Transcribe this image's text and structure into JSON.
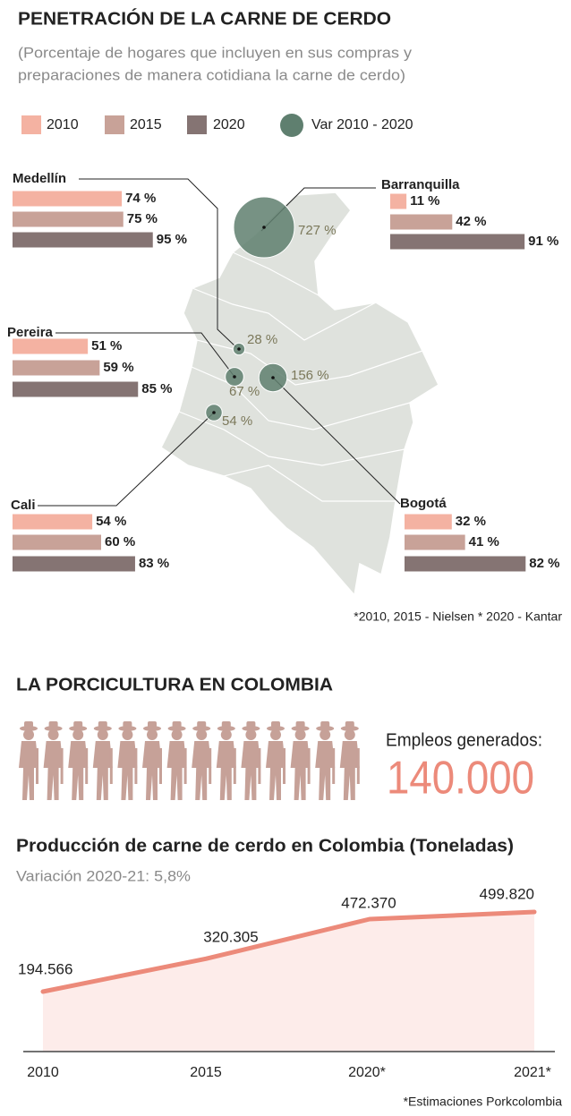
{
  "chart_data": [
    {
      "type": "bar",
      "title": "PENETRACIÓN DE LA CARNE DE CERDO",
      "subtitle": [
        "(Porcentaje de hogares que incluyen en sus compras y",
        "preparaciones de manera cotidiana la carne de cerdo)"
      ],
      "categories": [
        "Medellín",
        "Barranquilla",
        "Pereira",
        "Bogotá",
        "Cali"
      ],
      "series": [
        {
          "name": "2010",
          "color": "#f4b2a2",
          "values": [
            74,
            11,
            51,
            32,
            54
          ],
          "value_labels": [
            "74 %",
            "11 %",
            "51 %",
            "32 %",
            "54 %"
          ]
        },
        {
          "name": "2015",
          "color": "#c8a298",
          "values": [
            75,
            42,
            59,
            41,
            60
          ],
          "value_labels": [
            "75 %",
            "42 %",
            "59 %",
            "41 %",
            "60 %"
          ]
        },
        {
          "name": "2020",
          "color": "#857473",
          "values": [
            95,
            91,
            85,
            82,
            83
          ],
          "value_labels": [
            "95 %",
            "91 %",
            "85 %",
            "82 %",
            "83 %"
          ]
        },
        {
          "name": "Var 2010 - 2020",
          "type": "bubble",
          "color": "#5f7f6f",
          "values": [
            28,
            727,
            67,
            156,
            54
          ],
          "value_labels": [
            "28 %",
            "727 %",
            "67 %",
            "156 %",
            "54 %"
          ]
        }
      ],
      "note": "*2010, 2015 - Nielsen * 2020 - Kantar"
    },
    {
      "type": "line",
      "title": "Producción de carne de cerdo en Colombia (Toneladas)",
      "subtitle": "Variación 2020-21: 5,8%",
      "categories": [
        "2010",
        "2015",
        "2020*",
        "2021*"
      ],
      "values": [
        194566,
        320305,
        472370,
        499820
      ],
      "value_labels": [
        "194.566",
        "320.305",
        "472.370",
        "499.820"
      ],
      "color": "#ec8a7a",
      "note": "*Estimaciones Porkcolombia"
    }
  ],
  "employment": {
    "title": "LA PORCICULTURA EN COLOMBIA",
    "label": "Empleos generados:",
    "value": 140000,
    "value_label": "140.000"
  }
}
